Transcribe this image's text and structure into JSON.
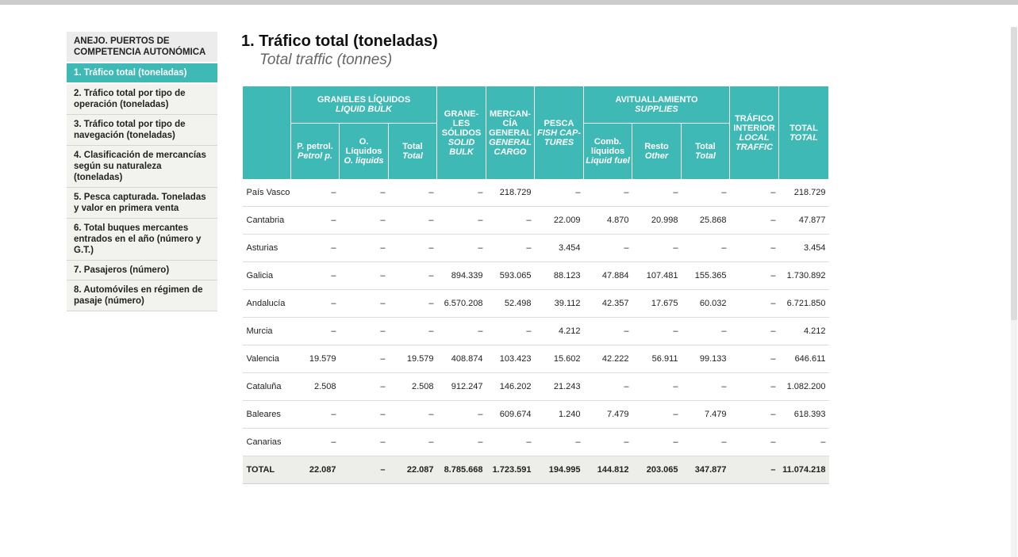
{
  "sidebar": {
    "header": "ANEJO. PUERTOS DE COMPETENCIA AUTONÓMICA",
    "items": [
      {
        "label": "1. Tráfico total (toneladas)"
      },
      {
        "label": "2. Tráfico total por tipo de operación (toneladas)"
      },
      {
        "label": "3. Tráfico total por tipo de navegación (toneladas)"
      },
      {
        "label": "4. Clasificación de mercancías según su naturaleza (toneladas)"
      },
      {
        "label": "5. Pesca capturada. Toneladas y valor en primera venta"
      },
      {
        "label": "6. Total buques mercantes entrados en el año (número y G.T.)"
      },
      {
        "label": "7. Pasajeros (número)"
      },
      {
        "label": "8. Automóviles en régimen de pasaje (número)"
      }
    ]
  },
  "title": {
    "es": "1. Tráfico total (toneladas)",
    "en": "Total traffic (tonnes)"
  },
  "table": {
    "groups": {
      "graneles_liquidos": {
        "es": "GRANELES LÍQUIDOS",
        "en": "LIQUID BULK"
      },
      "graneles_solidos": {
        "es": "GRANE-LES SÓLIDOS",
        "en": "SOLID BULK"
      },
      "mercancia_general": {
        "es": "MERCAN-CÍA GENERAL",
        "en": "GENERAL CARGO"
      },
      "pesca": {
        "es": "PESCA",
        "en": "FISH CAP-TURES"
      },
      "avituallamiento": {
        "es": "AVITUALLAMIENTO",
        "en": "SUPPLIES"
      },
      "trafico_interior": {
        "es": "TRÁFICO INTERIOR",
        "en": "LOCAL TRAFFIC"
      },
      "total": {
        "es": "TOTAL",
        "en": "TOTAL"
      }
    },
    "subcols": {
      "petrol": {
        "es": "P. petrol.",
        "en": "Petrol p."
      },
      "oliquidos": {
        "es": "O. Líquidos",
        "en": "O. liquids"
      },
      "total_liq": {
        "es": "Total",
        "en": "Total"
      },
      "comb": {
        "es": "Comb. líquidos",
        "en": "Liquid fuel"
      },
      "resto": {
        "es": "Resto",
        "en": "Other"
      },
      "total_sup": {
        "es": "Total",
        "en": "Total"
      }
    },
    "rows": [
      {
        "name": "País Vasco",
        "c": [
          "–",
          "–",
          "–",
          "–",
          "218.729",
          "–",
          "–",
          "–",
          "–",
          "–",
          "218.729"
        ]
      },
      {
        "name": "Cantabria",
        "c": [
          "–",
          "–",
          "–",
          "–",
          "–",
          "22.009",
          "4.870",
          "20.998",
          "25.868",
          "–",
          "47.877"
        ]
      },
      {
        "name": "Asturias",
        "c": [
          "–",
          "–",
          "–",
          "–",
          "–",
          "3.454",
          "–",
          "–",
          "–",
          "–",
          "3.454"
        ]
      },
      {
        "name": "Galicia",
        "c": [
          "–",
          "–",
          "–",
          "894.339",
          "593.065",
          "88.123",
          "47.884",
          "107.481",
          "155.365",
          "–",
          "1.730.892"
        ]
      },
      {
        "name": "Andalucía",
        "c": [
          "–",
          "–",
          "–",
          "6.570.208",
          "52.498",
          "39.112",
          "42.357",
          "17.675",
          "60.032",
          "–",
          "6.721.850"
        ]
      },
      {
        "name": "Murcia",
        "c": [
          "–",
          "–",
          "–",
          "–",
          "–",
          "4.212",
          "–",
          "–",
          "–",
          "–",
          "4.212"
        ]
      },
      {
        "name": "Valencia",
        "c": [
          "19.579",
          "–",
          "19.579",
          "408.874",
          "103.423",
          "15.602",
          "42.222",
          "56.911",
          "99.133",
          "–",
          "646.611"
        ]
      },
      {
        "name": "Cataluña",
        "c": [
          "2.508",
          "–",
          "2.508",
          "912.247",
          "146.202",
          "21.243",
          "–",
          "–",
          "–",
          "–",
          "1.082.200"
        ]
      },
      {
        "name": "Baleares",
        "c": [
          "–",
          "–",
          "–",
          "–",
          "609.674",
          "1.240",
          "7.479",
          "–",
          "7.479",
          "–",
          "618.393"
        ]
      },
      {
        "name": "Canarias",
        "c": [
          "–",
          "–",
          "–",
          "–",
          "–",
          "–",
          "–",
          "–",
          "–",
          "–",
          "–"
        ]
      }
    ],
    "total_row": {
      "name": "TOTAL",
      "c": [
        "22.087",
        "–",
        "22.087",
        "8.785.668",
        "1.723.591",
        "194.995",
        "144.812",
        "203.065",
        "347.877",
        "–",
        "11.074.218"
      ]
    }
  }
}
